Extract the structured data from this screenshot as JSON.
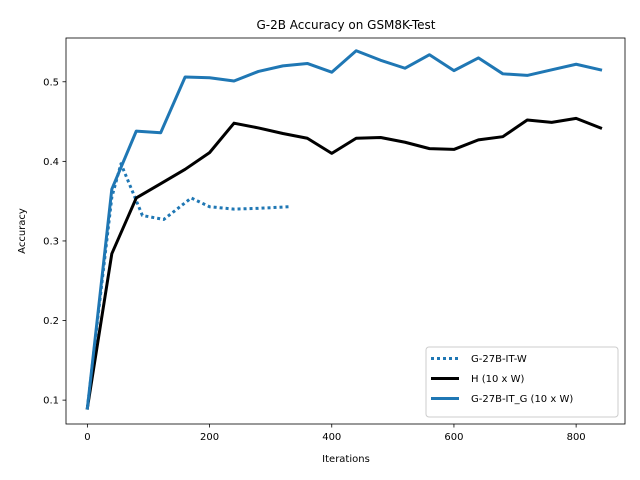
{
  "chart_data": {
    "type": "line",
    "title": "G-2B Accuracy on GSM8K-Test",
    "xlabel": "Iterations",
    "ylabel": "Accuracy",
    "xlim": [
      -35,
      880
    ],
    "ylim": [
      0.07,
      0.555
    ],
    "xticks": [
      0,
      200,
      400,
      600,
      800
    ],
    "yticks": [
      0.1,
      0.2,
      0.3,
      0.4,
      0.5
    ],
    "grid": false,
    "legend_position": "lower-right",
    "series": [
      {
        "name": "G-27B-IT-W",
        "color": "#1f77b4",
        "style": "dotted",
        "x": [
          0,
          40,
          55,
          75,
          90,
          125,
          170,
          200,
          240,
          280,
          330
        ],
        "y": [
          0.09,
          0.355,
          0.397,
          0.36,
          0.332,
          0.327,
          0.354,
          0.343,
          0.34,
          0.341,
          0.343
        ]
      },
      {
        "name": "H (10 x W)",
        "color": "#000000",
        "style": "solid",
        "x": [
          0,
          40,
          80,
          120,
          160,
          200,
          240,
          280,
          320,
          360,
          400,
          440,
          480,
          520,
          560,
          600,
          640,
          680,
          720,
          760,
          800,
          840
        ],
        "y": [
          0.09,
          0.284,
          0.354,
          0.372,
          0.39,
          0.411,
          0.448,
          0.442,
          0.435,
          0.429,
          0.41,
          0.429,
          0.43,
          0.424,
          0.416,
          0.415,
          0.427,
          0.431,
          0.452,
          0.449,
          0.454,
          0.442
        ]
      },
      {
        "name": "G-27B-IT_G (10 x W)",
        "color": "#1f77b4",
        "style": "solid",
        "x": [
          0,
          40,
          80,
          120,
          160,
          200,
          240,
          280,
          320,
          360,
          400,
          440,
          480,
          520,
          560,
          600,
          640,
          680,
          720,
          760,
          800,
          840
        ],
        "y": [
          0.09,
          0.365,
          0.438,
          0.436,
          0.506,
          0.505,
          0.501,
          0.513,
          0.52,
          0.523,
          0.512,
          0.539,
          0.527,
          0.517,
          0.534,
          0.514,
          0.53,
          0.51,
          0.508,
          0.515,
          0.522,
          0.515
        ]
      }
    ]
  }
}
